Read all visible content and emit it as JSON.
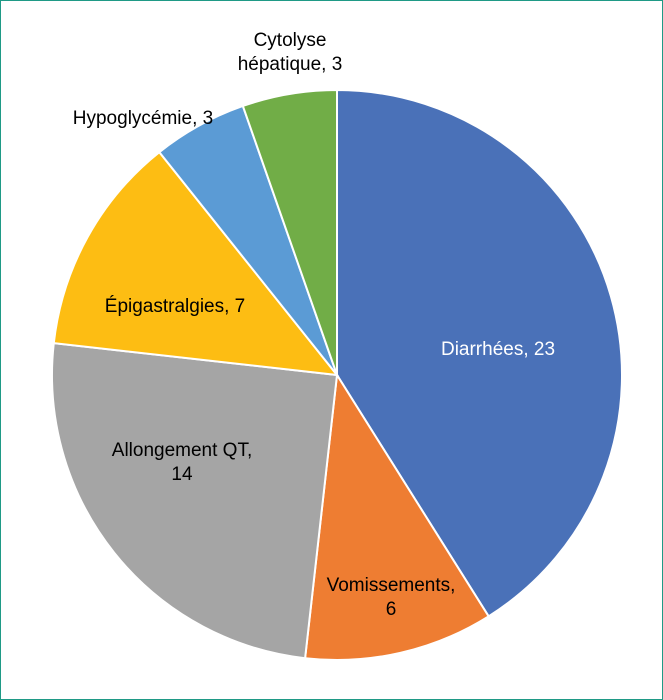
{
  "chart_data": {
    "type": "pie",
    "title": "",
    "legend": "none",
    "start_angle_deg": 0,
    "direction": "clockwise",
    "slices": [
      {
        "category": "Diarrhées",
        "value": 23,
        "label_lines": [
          "Diarrhées, 23"
        ],
        "color": "#4a71b8"
      },
      {
        "category": "Vomissements",
        "value": 6,
        "label_lines": [
          "Vomissements,",
          "6"
        ],
        "color": "#ee7d32"
      },
      {
        "category": "Allongement QT",
        "value": 14,
        "label_lines": [
          "Allongement QT,",
          "14"
        ],
        "color": "#a5a5a5"
      },
      {
        "category": "Épigastralgies",
        "value": 7,
        "label_lines": [
          "Épigastralgies, 7"
        ],
        "color": "#fdbd13"
      },
      {
        "category": "Hypoglycémie",
        "value": 3,
        "label_lines": [
          "Hypoglycémie, 3"
        ],
        "color": "#5b9bd5"
      },
      {
        "category": "Cytolyse hépatique",
        "value": 3,
        "label_lines": [
          "Cytolyse",
          "hépatique, 3"
        ],
        "color": "#71ad47"
      }
    ]
  }
}
